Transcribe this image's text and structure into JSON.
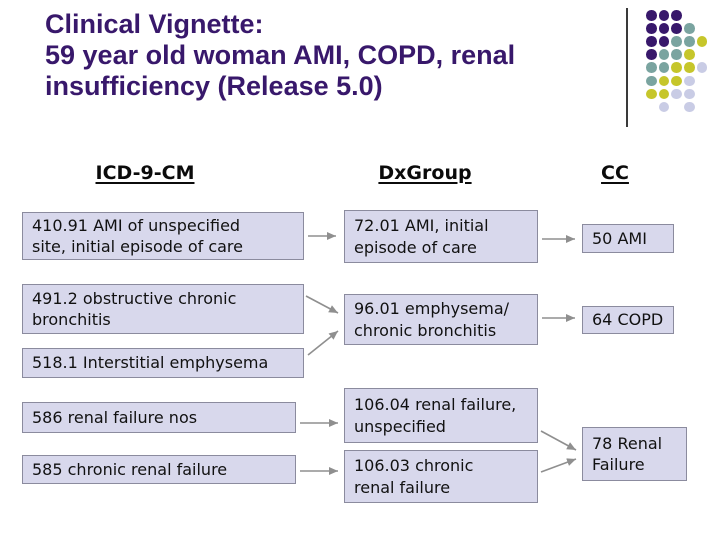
{
  "title": {
    "text": "Clinical Vignette:\n59 year old woman AMI, COPD, renal\ninsufficiency (Release 5.0)"
  },
  "columns": {
    "icd": {
      "header": "ICD-9-CM",
      "boxes": [
        {
          "code": "410.91",
          "text": "410.91 AMI of unspecified\nsite, initial episode of care"
        },
        {
          "code": "491.2",
          "text": "491.2 obstructive chronic\nbronchitis"
        },
        {
          "code": "518.1",
          "text": "518.1 Interstitial emphysema"
        },
        {
          "code": "586",
          "text": "586 renal failure nos"
        },
        {
          "code": "585",
          "text": "585 chronic renal failure"
        }
      ]
    },
    "dxgroup": {
      "header": "DxGroup",
      "boxes": [
        {
          "code": "72.01",
          "text": "72.01 AMI, initial\nepisode of care"
        },
        {
          "code": "96.01",
          "text": "96.01 emphysema/\nchronic bronchitis"
        },
        {
          "code": "106.04",
          "text": "106.04 renal failure,\nunspecified"
        },
        {
          "code": "106.03",
          "text": "106.03 chronic\nrenal failure"
        }
      ]
    },
    "cc": {
      "header": "CC",
      "boxes": [
        {
          "code": "50",
          "text": "50 AMI"
        },
        {
          "code": "64",
          "text": "64 COPD"
        },
        {
          "code": "78",
          "text": "78 Renal\nFailure"
        }
      ]
    }
  },
  "connections": [
    {
      "from": "410.91",
      "to": "72.01"
    },
    {
      "from": "491.2",
      "to": "96.01"
    },
    {
      "from": "518.1",
      "to": "96.01"
    },
    {
      "from": "586",
      "to": "106.04"
    },
    {
      "from": "585",
      "to": "106.03"
    },
    {
      "from": "72.01",
      "to": "50"
    },
    {
      "from": "96.01",
      "to": "64"
    },
    {
      "from": "106.04",
      "to": "78"
    },
    {
      "from": "106.03",
      "to": "78"
    }
  ],
  "colors": {
    "title": "#38186B",
    "box_fill": "#D8D8EC",
    "box_border": "#8B8B9E",
    "arrow": "#8F8F8F"
  },
  "decor": {
    "dot_pattern": [
      "PPP",
      "PPPT",
      "PPTTY",
      "PTTY",
      "TTYYL",
      "TYYL",
      "YYLL",
      "-L-L"
    ],
    "dot_colors": {
      "P": "#38186B",
      "T": "#7AA4A0",
      "Y": "#C6C62B",
      "L": "#C9CCE5"
    }
  }
}
